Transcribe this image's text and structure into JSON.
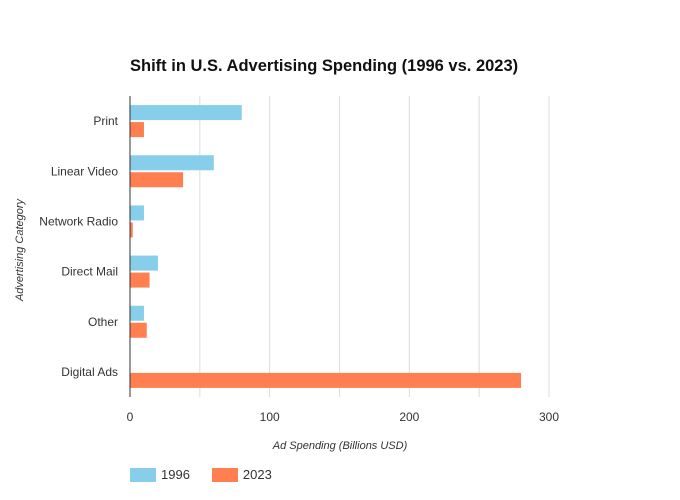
{
  "chart_data": {
    "type": "bar",
    "orientation": "horizontal",
    "title": "Shift in U.S. Advertising Spending (1996 vs. 2023)",
    "xlabel": "Ad Spending (Billions USD)",
    "ylabel": "Advertising Category",
    "categories": [
      "Print",
      "Linear Video",
      "Network Radio",
      "Direct Mail",
      "Other",
      "Digital Ads"
    ],
    "series": [
      {
        "name": "1996",
        "color": "#87CEEB",
        "values": [
          80,
          60,
          10,
          20,
          10,
          0
        ]
      },
      {
        "name": "2023",
        "color": "#FF7F50",
        "values": [
          10,
          38,
          2,
          14,
          12,
          280
        ]
      }
    ],
    "xlim": [
      0,
      300
    ],
    "xticks": [
      "0",
      "100",
      "200",
      "300"
    ],
    "grid": true,
    "legend_position": "bottom-left"
  }
}
